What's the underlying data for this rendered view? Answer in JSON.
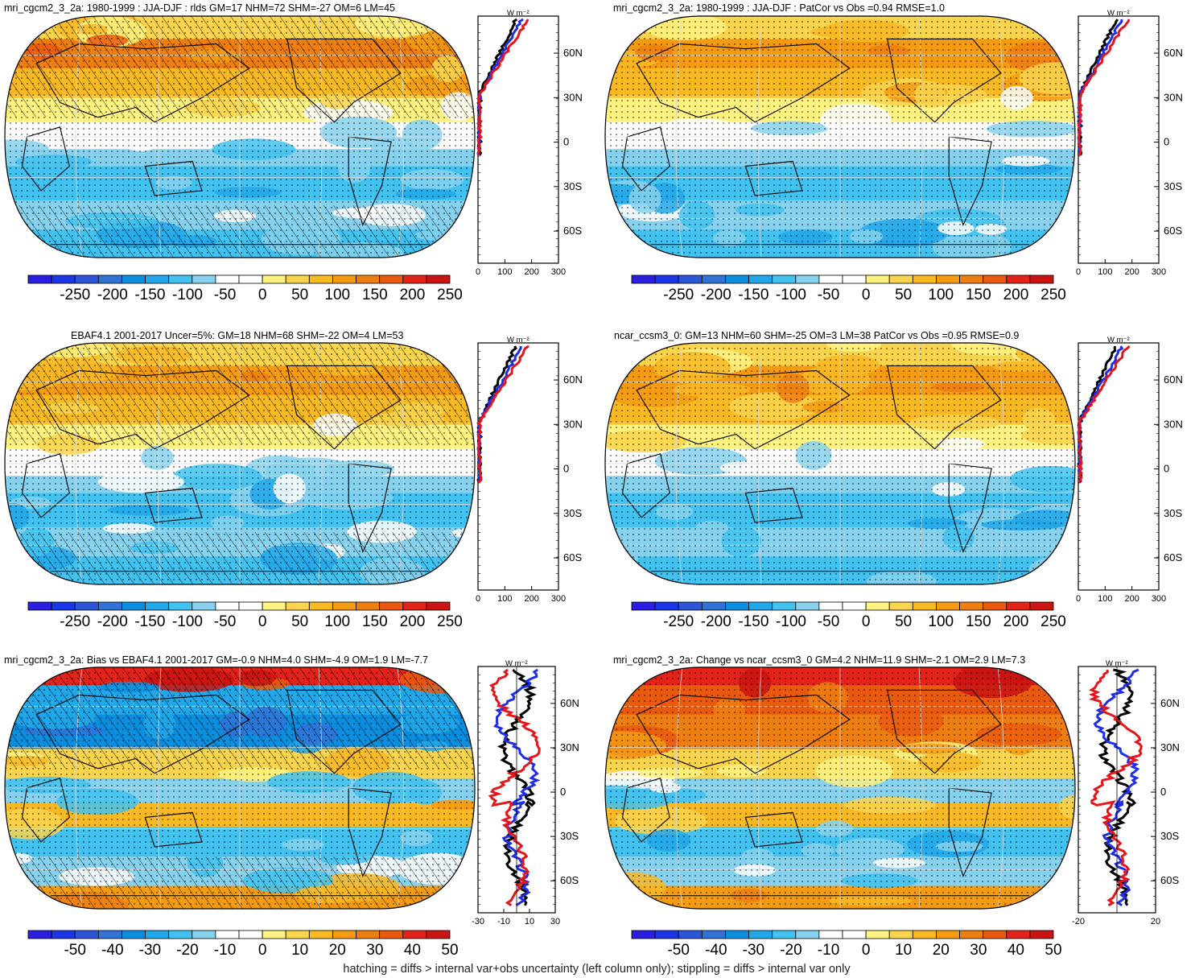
{
  "figure": {
    "footer": "hatching = diffs > internal var+obs uncertainty (left column only); stippling = diffs > internal var only"
  },
  "colorscales": {
    "absolute": {
      "levels_labels": [
        "-250",
        "-200",
        "-150",
        "-100",
        "-50",
        "0",
        "50",
        "100",
        "150",
        "200",
        "250"
      ],
      "colors": [
        "#2a1fe0",
        "#1b36e6",
        "#2c55d8",
        "#2f73d6",
        "#0a8fe0",
        "#21a8ea",
        "#42c2f0",
        "#86d2ee",
        "#ffffff",
        "#ffffff",
        "#fff280",
        "#fbd44d",
        "#f9b923",
        "#f59b12",
        "#ef7e11",
        "#ea5a0e",
        "#e3221a",
        "#c91412"
      ]
    },
    "difference": {
      "levels_labels": [
        "-50",
        "-40",
        "-30",
        "-20",
        "-10",
        "0",
        "10",
        "20",
        "30",
        "40",
        "50"
      ],
      "colors": [
        "#2a1fe0",
        "#1b36e6",
        "#2c55d8",
        "#2f73d6",
        "#0a8fe0",
        "#21a8ea",
        "#42c2f0",
        "#86d2ee",
        "#ffffff",
        "#ffffff",
        "#fff280",
        "#fbd44d",
        "#f9b923",
        "#f59b12",
        "#ef7e11",
        "#ea5a0e",
        "#e3221a",
        "#c91412"
      ]
    }
  },
  "panels": [
    {
      "id": "top-left",
      "title": "mri_cgcm2_3_2a: 1980-1999 : JJA-DJF : rlds GM=17 NHM=72 SHM=-27 OM=6 LM=45",
      "scale": "absolute",
      "hatching": true,
      "zonal": {
        "unit": "W m⁻²",
        "x_ticks": [
          "0",
          "100",
          "200",
          "300"
        ],
        "y_ticks": [
          "60N",
          "30N",
          "0",
          "30S",
          "60S"
        ],
        "series": [
          {
            "color": "#000000"
          },
          {
            "color": "#1f2ee6"
          },
          {
            "color": "#e5161b"
          }
        ]
      }
    },
    {
      "id": "top-right",
      "title": "mri_cgcm2_3_2a: 1980-1999 : JJA-DJF : PatCor vs Obs =0.94 RMSE=1.0",
      "scale": "absolute",
      "hatching": false,
      "zonal": {
        "unit": "W m⁻²",
        "x_ticks": [
          "0",
          "100",
          "200",
          "300"
        ],
        "y_ticks": [
          "60N",
          "30N",
          "0",
          "30S",
          "60S"
        ],
        "series": [
          {
            "color": "#000000"
          },
          {
            "color": "#1f2ee6"
          },
          {
            "color": "#e5161b"
          }
        ]
      }
    },
    {
      "id": "middle-left",
      "title": "EBAF4.1 2001-2017 Uncer=5%: GM=18 NHM=68 SHM=-22 OM=4 LM=53",
      "scale": "absolute",
      "hatching": true,
      "zonal": {
        "unit": "W m⁻²",
        "x_ticks": [
          "0",
          "100",
          "200",
          "300"
        ],
        "y_ticks": [
          "60N",
          "30N",
          "0",
          "30S",
          "60S"
        ],
        "series": [
          {
            "color": "#000000"
          },
          {
            "color": "#1f2ee6"
          },
          {
            "color": "#e5161b"
          }
        ]
      }
    },
    {
      "id": "middle-right",
      "title": "ncar_ccsm3_0: GM=13 NHM=60 SHM=-25 OM=3 LM=38 PatCor vs Obs =0.95 RMSE=0.9",
      "scale": "absolute",
      "hatching": false,
      "zonal": {
        "unit": "W m⁻²",
        "x_ticks": [
          "0",
          "100",
          "200",
          "300"
        ],
        "y_ticks": [
          "60N",
          "30N",
          "0",
          "30S",
          "60S"
        ],
        "series": [
          {
            "color": "#000000"
          },
          {
            "color": "#1f2ee6"
          },
          {
            "color": "#e5161b"
          }
        ]
      }
    },
    {
      "id": "bottom-left",
      "title": "mri_cgcm2_3_2a: Bias vs EBAF4.1 2001-2017 GM=-0.9 NHM=4.0 SHM=-4.9 OM=1.9 LM=-7.7",
      "scale": "difference",
      "hatching": true,
      "zonal": {
        "unit": "W m⁻²",
        "x_ticks": [
          "-30",
          "-10",
          "10",
          "30"
        ],
        "y_ticks": [
          "60N",
          "30N",
          "0",
          "30S",
          "60S"
        ],
        "series": [
          {
            "color": "#000000"
          },
          {
            "color": "#1f2ee6"
          },
          {
            "color": "#e5161b"
          }
        ]
      }
    },
    {
      "id": "bottom-right",
      "title": "mri_cgcm2_3_2a: Change vs ncar_ccsm3_0 GM=4.2 NHM=11.9 SHM=-2.1 OM=2.9 LM=7.3",
      "scale": "difference",
      "hatching": false,
      "zonal": {
        "unit": "W m⁻²",
        "x_ticks": [
          "-20",
          "20"
        ],
        "y_ticks": [
          "60N",
          "30N",
          "0",
          "30S",
          "60S"
        ],
        "series": [
          {
            "color": "#000000"
          },
          {
            "color": "#1f2ee6"
          },
          {
            "color": "#e5161b"
          }
        ]
      }
    }
  ]
}
